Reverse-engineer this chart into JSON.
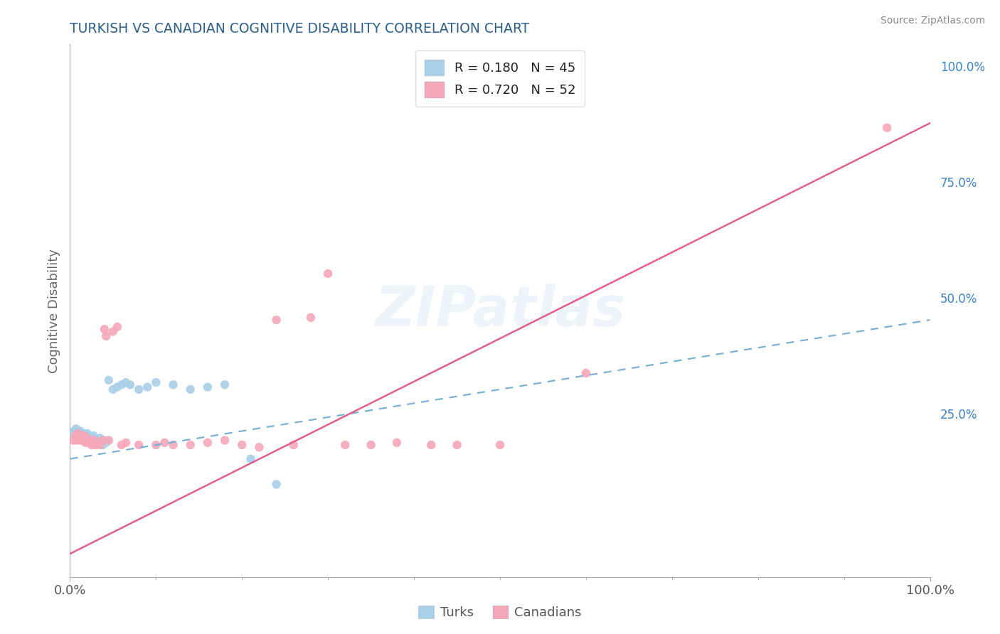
{
  "title": "TURKISH VS CANADIAN COGNITIVE DISABILITY CORRELATION CHART",
  "source_text": "Source: ZipAtlas.com",
  "ylabel": "Cognitive Disability",
  "watermark": "ZIPatlas",
  "turks_R": 0.18,
  "turks_N": 45,
  "canadians_R": 0.72,
  "canadians_N": 52,
  "turk_color": "#a8cfe8",
  "canadian_color": "#f4a7b9",
  "turk_line_color": "#7ab0d4",
  "canadian_line_color": "#e0608a",
  "title_color": "#2c5f8a",
  "label_color": "#3a82c4",
  "axis_tick_color": "#555555",
  "background_color": "#ffffff",
  "grid_color": "#cccccc",
  "xlim": [
    0.0,
    1.0
  ],
  "ylim": [
    -0.1,
    1.05
  ],
  "turk_line_x0": 0.0,
  "turk_line_y0": 0.155,
  "turk_line_x1": 1.0,
  "turk_line_y1": 0.455,
  "can_line_x0": 0.0,
  "can_line_y0": -0.05,
  "can_line_x1": 1.0,
  "can_line_y1": 0.88,
  "turks_x": [
    0.003,
    0.005,
    0.006,
    0.007,
    0.008,
    0.009,
    0.01,
    0.011,
    0.012,
    0.013,
    0.014,
    0.015,
    0.016,
    0.017,
    0.018,
    0.019,
    0.02,
    0.021,
    0.022,
    0.023,
    0.025,
    0.026,
    0.027,
    0.028,
    0.03,
    0.032,
    0.035,
    0.038,
    0.04,
    0.042,
    0.045,
    0.05,
    0.055,
    0.06,
    0.065,
    0.07,
    0.08,
    0.09,
    0.1,
    0.12,
    0.14,
    0.16,
    0.18,
    0.21,
    0.24
  ],
  "turks_y": [
    0.21,
    0.215,
    0.205,
    0.22,
    0.2,
    0.215,
    0.21,
    0.205,
    0.215,
    0.2,
    0.205,
    0.21,
    0.2,
    0.205,
    0.195,
    0.2,
    0.21,
    0.2,
    0.205,
    0.195,
    0.195,
    0.2,
    0.205,
    0.195,
    0.195,
    0.19,
    0.2,
    0.185,
    0.195,
    0.19,
    0.325,
    0.305,
    0.31,
    0.315,
    0.32,
    0.315,
    0.305,
    0.31,
    0.32,
    0.315,
    0.305,
    0.31,
    0.315,
    0.155,
    0.1
  ],
  "canadians_x": [
    0.004,
    0.006,
    0.007,
    0.008,
    0.009,
    0.01,
    0.012,
    0.013,
    0.014,
    0.015,
    0.016,
    0.017,
    0.018,
    0.02,
    0.021,
    0.022,
    0.023,
    0.025,
    0.027,
    0.028,
    0.03,
    0.032,
    0.035,
    0.038,
    0.04,
    0.042,
    0.045,
    0.05,
    0.055,
    0.06,
    0.065,
    0.08,
    0.1,
    0.11,
    0.12,
    0.14,
    0.16,
    0.18,
    0.2,
    0.22,
    0.24,
    0.26,
    0.28,
    0.3,
    0.32,
    0.35,
    0.38,
    0.42,
    0.45,
    0.5,
    0.6,
    0.95
  ],
  "canadians_y": [
    0.195,
    0.205,
    0.2,
    0.195,
    0.21,
    0.2,
    0.195,
    0.205,
    0.2,
    0.195,
    0.205,
    0.195,
    0.19,
    0.2,
    0.195,
    0.19,
    0.195,
    0.185,
    0.19,
    0.195,
    0.185,
    0.19,
    0.185,
    0.195,
    0.435,
    0.42,
    0.195,
    0.43,
    0.44,
    0.185,
    0.19,
    0.185,
    0.185,
    0.19,
    0.185,
    0.185,
    0.19,
    0.195,
    0.185,
    0.18,
    0.455,
    0.185,
    0.46,
    0.555,
    0.185,
    0.185,
    0.19,
    0.185,
    0.185,
    0.185,
    0.34,
    0.87
  ],
  "right_ytick_labels": [
    "100.0%",
    "75.0%",
    "50.0%",
    "25.0%"
  ],
  "right_ytick_values": [
    1.0,
    0.75,
    0.5,
    0.25
  ],
  "xtick_labels": [
    "0.0%",
    "100.0%"
  ],
  "xtick_values": [
    0.0,
    1.0
  ]
}
